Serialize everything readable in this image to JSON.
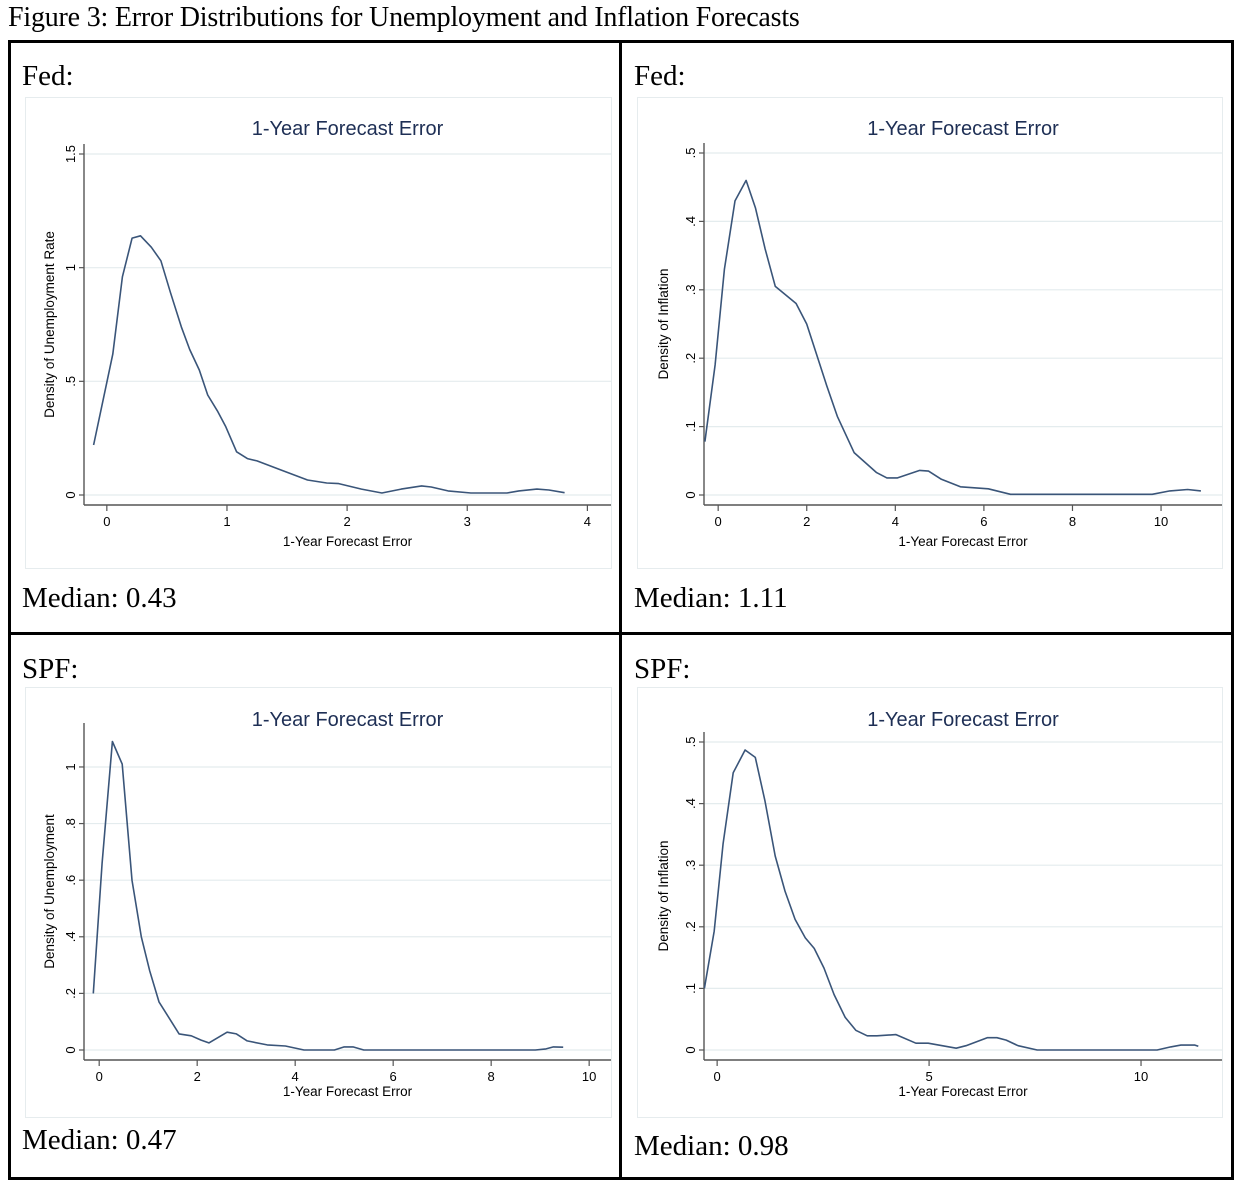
{
  "figure_title": "Figure 3: Error Distributions for Unemployment and Inflation Forecasts",
  "colors": {
    "line": "#3a5579",
    "grid": "#e4ecee",
    "axis": "#555555",
    "title": "#1e2f55"
  },
  "panels": [
    {
      "label": "Fed:",
      "median": "Median: 0.43"
    },
    {
      "label": "Fed:",
      "median": "Median: 1.11"
    },
    {
      "label": "SPF:",
      "median": "Median: 0.47"
    },
    {
      "label": "SPF:",
      "median": "Median: 0.98"
    }
  ],
  "chart_data": [
    {
      "type": "line",
      "title": "1-Year Forecast Error",
      "xlabel": "1-Year Forecast Error",
      "ylabel": "Density of Unemployment Rate",
      "xlim": [
        -0.19,
        4.08
      ],
      "ylim": [
        0,
        1.5
      ],
      "xticks": [
        0,
        1,
        2,
        3,
        4
      ],
      "xtick_labels": [
        "0",
        "1",
        "2",
        "3",
        "4"
      ],
      "yticks": [
        0,
        0.5,
        1,
        1.5
      ],
      "ytick_labels": [
        "0",
        ".5",
        "1",
        "1.5"
      ],
      "grid": true,
      "series": [
        {
          "name": "density",
          "x": [
            -0.11,
            0.05,
            0.13,
            0.21,
            0.28,
            0.37,
            0.45,
            0.53,
            0.62,
            0.69,
            0.77,
            0.84,
            0.92,
            0.99,
            1.08,
            1.17,
            1.25,
            1.45,
            1.67,
            1.83,
            1.93,
            2.12,
            2.29,
            2.45,
            2.62,
            2.7,
            2.84,
            3.03,
            3.33,
            3.43,
            3.58,
            3.68,
            3.81
          ],
          "y": [
            0.22,
            0.62,
            0.96,
            1.13,
            1.14,
            1.09,
            1.03,
            0.89,
            0.74,
            0.64,
            0.55,
            0.44,
            0.37,
            0.3,
            0.19,
            0.16,
            0.15,
            0.11,
            0.066,
            0.053,
            0.05,
            0.026,
            0.009,
            0.026,
            0.04,
            0.035,
            0.018,
            0.009,
            0.009,
            0.018,
            0.026,
            0.022,
            0.01
          ]
        }
      ]
    },
    {
      "type": "line",
      "title": "1-Year Forecast Error",
      "xlabel": "1-Year Forecast Error",
      "ylabel": "Density of Inflation",
      "xlim": [
        -0.32,
        11.06
      ],
      "ylim": [
        0,
        0.5
      ],
      "xticks": [
        0,
        2,
        4,
        6,
        8,
        10
      ],
      "xtick_labels": [
        "0",
        "2",
        "4",
        "6",
        "8",
        "10"
      ],
      "yticks": [
        0,
        0.1,
        0.2,
        0.3,
        0.4,
        0.5
      ],
      "ytick_labels": [
        "0",
        ".1",
        ".2",
        ".3",
        ".4",
        ".5"
      ],
      "grid": true,
      "series": [
        {
          "name": "density",
          "x": [
            -0.3,
            -0.07,
            0.14,
            0.38,
            0.63,
            0.84,
            1.06,
            1.29,
            1.76,
            2.0,
            2.2,
            2.45,
            2.69,
            3.07,
            3.57,
            3.81,
            4.05,
            4.55,
            4.75,
            5.04,
            5.47,
            6.1,
            6.6,
            9.8,
            10.2,
            10.6,
            10.9
          ],
          "y": [
            0.078,
            0.19,
            0.33,
            0.43,
            0.46,
            0.42,
            0.36,
            0.305,
            0.28,
            0.25,
            0.21,
            0.16,
            0.115,
            0.062,
            0.033,
            0.025,
            0.025,
            0.036,
            0.035,
            0.023,
            0.012,
            0.009,
            0.001,
            0.001,
            0.006,
            0.008,
            0.006
          ]
        }
      ]
    },
    {
      "type": "line",
      "title": "1-Year Forecast Error",
      "xlabel": "1-Year Forecast Error",
      "ylabel": "Density of Unemployment",
      "xlim": [
        -0.31,
        10.16
      ],
      "ylim": [
        0,
        1.12
      ],
      "xticks": [
        0,
        2,
        4,
        6,
        8,
        10
      ],
      "xtick_labels": [
        "0",
        "2",
        "4",
        "6",
        "8",
        "10"
      ],
      "yticks": [
        0,
        0.2,
        0.4,
        0.6,
        0.8,
        1
      ],
      "ytick_labels": [
        "0",
        ".2",
        ".4",
        ".6",
        ".8",
        "1"
      ],
      "grid": true,
      "series": [
        {
          "name": "density",
          "x": [
            -0.12,
            0.06,
            0.27,
            0.47,
            0.67,
            0.86,
            1.03,
            1.22,
            1.63,
            1.88,
            2.08,
            2.24,
            2.61,
            2.8,
            3.02,
            3.43,
            3.8,
            4.18,
            4.8,
            5.0,
            5.18,
            5.4,
            8.9,
            9.12,
            9.27,
            9.47
          ],
          "y": [
            0.2,
            0.66,
            1.09,
            1.01,
            0.6,
            0.4,
            0.28,
            0.17,
            0.057,
            0.05,
            0.035,
            0.025,
            0.063,
            0.057,
            0.032,
            0.018,
            0.014,
            0.0,
            0.0,
            0.011,
            0.011,
            0.0,
            0.0,
            0.004,
            0.011,
            0.01
          ]
        }
      ]
    },
    {
      "type": "line",
      "title": "1-Year Forecast Error",
      "xlabel": "1-Year Forecast Error",
      "ylabel": "Density of Inflation",
      "xlim": [
        -0.31,
        11.58
      ],
      "ylim": [
        0,
        0.5
      ],
      "xticks": [
        0,
        5,
        10
      ],
      "xtick_labels": [
        "0",
        "5",
        "10"
      ],
      "yticks": [
        0,
        0.1,
        0.2,
        0.3,
        0.4,
        0.5
      ],
      "ytick_labels": [
        "0",
        ".1",
        ".2",
        ".3",
        ".4",
        ".5"
      ],
      "grid": true,
      "series": [
        {
          "name": "density",
          "x": [
            -0.3,
            -0.07,
            0.14,
            0.38,
            0.66,
            0.9,
            1.13,
            1.37,
            1.6,
            1.84,
            2.08,
            2.29,
            2.52,
            2.76,
            3.02,
            3.27,
            3.54,
            3.77,
            4.22,
            4.69,
            4.98,
            5.64,
            5.87,
            6.37,
            6.6,
            6.82,
            7.1,
            7.55,
            10.38,
            10.7,
            10.94,
            11.27,
            11.35
          ],
          "y": [
            0.1,
            0.193,
            0.335,
            0.45,
            0.487,
            0.475,
            0.404,
            0.315,
            0.258,
            0.212,
            0.182,
            0.165,
            0.133,
            0.09,
            0.053,
            0.032,
            0.023,
            0.023,
            0.025,
            0.011,
            0.011,
            0.003,
            0.007,
            0.02,
            0.02,
            0.016,
            0.007,
            0.0,
            0.0,
            0.005,
            0.008,
            0.008,
            0.006
          ]
        }
      ]
    }
  ]
}
